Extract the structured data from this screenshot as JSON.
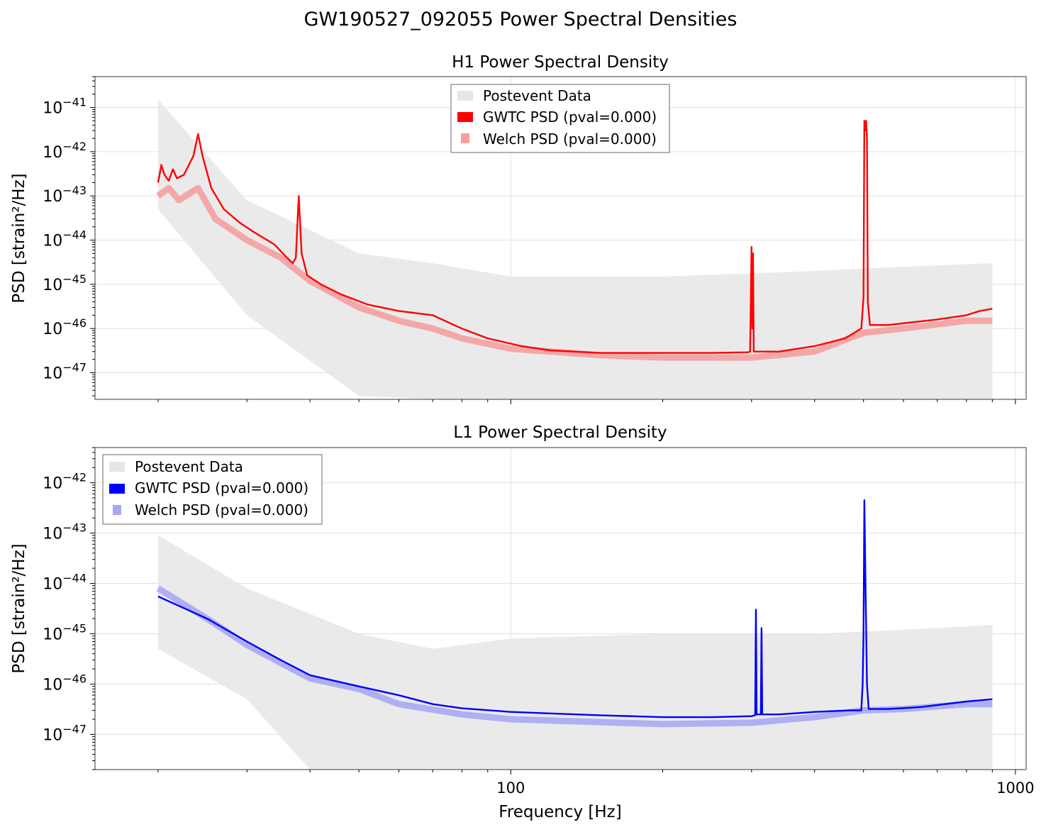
{
  "figure_title": "GW190527_092055 Power Spectral Densities",
  "x_axis_label": "Frequency [Hz]",
  "colors": {
    "postevent": "#e6e6e6",
    "h1_gwtc": "#ff0000",
    "h1_welch": "#f5a0a0",
    "l1_gwtc": "#0000ff",
    "l1_welch": "#a8a8f5",
    "grid": "#e0e0e0",
    "frame": "#808080"
  },
  "chart_data": [
    {
      "type": "line",
      "title": "H1 Power Spectral Density",
      "xlabel": "",
      "ylabel": "PSD [strain²/Hz]",
      "xscale": "log",
      "yscale": "log",
      "xlim": [
        15,
        1050
      ],
      "ylim": [
        2.5e-48,
        5e-41
      ],
      "x_ticks": [
        100,
        1000
      ],
      "x_tick_labels": [
        "",
        ""
      ],
      "y_ticks": [
        1e-47,
        1e-46,
        1e-45,
        1e-44,
        1e-43,
        1e-42,
        1e-41
      ],
      "y_tick_labels": [
        {
          "base": "10",
          "exp": "−47"
        },
        {
          "base": "10",
          "exp": "−46"
        },
        {
          "base": "10",
          "exp": "−45"
        },
        {
          "base": "10",
          "exp": "−44"
        },
        {
          "base": "10",
          "exp": "−43"
        },
        {
          "base": "10",
          "exp": "−42"
        },
        {
          "base": "10",
          "exp": "−41"
        }
      ],
      "grid": true,
      "legend_position": "top-center",
      "series": [
        {
          "name": "Postevent Data",
          "role": "postevent",
          "color": "#e6e6e6"
        },
        {
          "name": "GWTC PSD (pval=0.000)",
          "role": "gwtc",
          "color": "#ff0000"
        },
        {
          "name": "Welch PSD (pval=0.000)",
          "role": "welch",
          "color": "#f5a0a0"
        }
      ],
      "gwtc_curve": [
        [
          20,
          2e-43
        ],
        [
          20.3,
          5e-43
        ],
        [
          20.6,
          3e-43
        ],
        [
          21,
          2.2e-43
        ],
        [
          21.4,
          4e-43
        ],
        [
          21.8,
          2.5e-43
        ],
        [
          22.5,
          3e-43
        ],
        [
          23.5,
          8e-43
        ],
        [
          24,
          2.5e-42
        ],
        [
          24.5,
          8e-43
        ],
        [
          25.5,
          1.5e-43
        ],
        [
          27,
          5e-44
        ],
        [
          29,
          2.5e-44
        ],
        [
          31,
          1.5e-44
        ],
        [
          34,
          8e-45
        ],
        [
          36,
          4e-45
        ],
        [
          37,
          3e-45
        ],
        [
          37.5,
          4e-45
        ],
        [
          38,
          1e-43
        ],
        [
          38.5,
          5e-45
        ],
        [
          39.5,
          1.6e-45
        ],
        [
          42,
          1e-45
        ],
        [
          46,
          6e-46
        ],
        [
          52,
          3.5e-46
        ],
        [
          60,
          2.5e-46
        ],
        [
          70,
          2e-46
        ],
        [
          80,
          1e-46
        ],
        [
          90,
          6e-47
        ],
        [
          105,
          4e-47
        ],
        [
          120,
          3.2e-47
        ],
        [
          150,
          2.8e-47
        ],
        [
          200,
          2.8e-47
        ],
        [
          250,
          2.8e-47
        ],
        [
          295,
          2.9e-47
        ],
        [
          298,
          3e-47
        ],
        [
          300,
          7e-45
        ],
        [
          301,
          1e-46
        ],
        [
          302,
          5e-45
        ],
        [
          303,
          3e-47
        ],
        [
          340,
          3e-47
        ],
        [
          400,
          4e-47
        ],
        [
          460,
          6e-47
        ],
        [
          495,
          1e-46
        ],
        [
          500,
          5e-46
        ],
        [
          502,
          5e-42
        ],
        [
          504,
          3e-42
        ],
        [
          506,
          5e-42
        ],
        [
          508,
          2e-42
        ],
        [
          510,
          4e-46
        ],
        [
          515,
          1.2e-46
        ],
        [
          560,
          1.2e-46
        ],
        [
          700,
          1.6e-46
        ],
        [
          800,
          2e-46
        ],
        [
          850,
          2.5e-46
        ],
        [
          900,
          2.8e-46
        ]
      ],
      "welch_curve": [
        [
          20,
          1e-43
        ],
        [
          21,
          1.5e-43
        ],
        [
          22,
          8e-44
        ],
        [
          24,
          1.5e-43
        ],
        [
          26,
          3e-44
        ],
        [
          30,
          1e-44
        ],
        [
          35,
          4e-45
        ],
        [
          40,
          1.2e-45
        ],
        [
          50,
          3e-46
        ],
        [
          60,
          1.5e-46
        ],
        [
          70,
          1e-46
        ],
        [
          80,
          6e-47
        ],
        [
          100,
          3.5e-47
        ],
        [
          150,
          2.5e-47
        ],
        [
          200,
          2.2e-47
        ],
        [
          300,
          2.2e-47
        ],
        [
          400,
          3e-47
        ],
        [
          500,
          8e-47
        ],
        [
          600,
          1e-46
        ],
        [
          800,
          1.5e-46
        ],
        [
          900,
          1.5e-46
        ]
      ],
      "postevent_envelope": {
        "upper": [
          [
            20,
            1.5e-41
          ],
          [
            30,
            8e-44
          ],
          [
            50,
            5e-45
          ],
          [
            70,
            3e-45
          ],
          [
            100,
            1.5e-45
          ],
          [
            200,
            1.5e-45
          ],
          [
            400,
            2e-45
          ],
          [
            600,
            2.5e-45
          ],
          [
            900,
            3e-45
          ]
        ],
        "lower": [
          [
            20,
            5e-44
          ],
          [
            30,
            2e-46
          ],
          [
            50,
            3e-48
          ],
          [
            70,
            2.5e-48
          ],
          [
            100,
            2.5e-48
          ],
          [
            900,
            2.5e-48
          ]
        ]
      }
    },
    {
      "type": "line",
      "title": "L1 Power Spectral Density",
      "xlabel": "Frequency [Hz]",
      "ylabel": "PSD [strain²/Hz]",
      "xscale": "log",
      "yscale": "log",
      "xlim": [
        15,
        1050
      ],
      "ylim": [
        2e-48,
        5e-42
      ],
      "x_ticks": [
        100,
        1000
      ],
      "x_tick_labels": [
        "100",
        "1000"
      ],
      "y_ticks": [
        1e-47,
        1e-46,
        1e-45,
        1e-44,
        1e-43,
        1e-42
      ],
      "y_tick_labels": [
        {
          "base": "10",
          "exp": "−47"
        },
        {
          "base": "10",
          "exp": "−46"
        },
        {
          "base": "10",
          "exp": "−45"
        },
        {
          "base": "10",
          "exp": "−44"
        },
        {
          "base": "10",
          "exp": "−43"
        },
        {
          "base": "10",
          "exp": "−42"
        }
      ],
      "grid": true,
      "legend_position": "top-left",
      "series": [
        {
          "name": "Postevent Data",
          "role": "postevent",
          "color": "#e6e6e6"
        },
        {
          "name": "GWTC PSD (pval=0.000)",
          "role": "gwtc",
          "color": "#0000ff"
        },
        {
          "name": "Welch PSD (pval=0.000)",
          "role": "welch",
          "color": "#a8a8f5"
        }
      ],
      "gwtc_curve": [
        [
          20,
          5.5e-45
        ],
        [
          25,
          2e-45
        ],
        [
          30,
          7e-46
        ],
        [
          35,
          3e-46
        ],
        [
          40,
          1.5e-46
        ],
        [
          50,
          9e-47
        ],
        [
          60,
          6e-47
        ],
        [
          70,
          4e-47
        ],
        [
          80,
          3.3e-47
        ],
        [
          100,
          2.8e-47
        ],
        [
          150,
          2.4e-47
        ],
        [
          200,
          2.2e-47
        ],
        [
          250,
          2.2e-47
        ],
        [
          300,
          2.3e-47
        ],
        [
          305,
          2.4e-47
        ],
        [
          306,
          3e-45
        ],
        [
          307,
          2.5e-47
        ],
        [
          313,
          2.5e-47
        ],
        [
          314,
          1.3e-45
        ],
        [
          315,
          2.5e-47
        ],
        [
          340,
          2.5e-47
        ],
        [
          400,
          2.8e-47
        ],
        [
          470,
          3e-47
        ],
        [
          495,
          3e-47
        ],
        [
          498,
          1e-46
        ],
        [
          500,
          1e-45
        ],
        [
          502,
          4.5e-43
        ],
        [
          505,
          5e-45
        ],
        [
          508,
          1e-46
        ],
        [
          512,
          3.2e-47
        ],
        [
          560,
          3.2e-47
        ],
        [
          650,
          3.5e-47
        ],
        [
          800,
          4.5e-47
        ],
        [
          900,
          5e-47
        ]
      ],
      "welch_curve": [
        [
          20,
          8e-45
        ],
        [
          25,
          2e-45
        ],
        [
          30,
          6e-46
        ],
        [
          40,
          1.3e-46
        ],
        [
          50,
          8e-47
        ],
        [
          60,
          4e-47
        ],
        [
          80,
          2.5e-47
        ],
        [
          100,
          2e-47
        ],
        [
          200,
          1.6e-47
        ],
        [
          300,
          1.7e-47
        ],
        [
          400,
          2.2e-47
        ],
        [
          500,
          3e-47
        ],
        [
          600,
          3.2e-47
        ],
        [
          800,
          4e-47
        ],
        [
          900,
          4e-47
        ]
      ],
      "postevent_envelope": {
        "upper": [
          [
            20,
            9e-44
          ],
          [
            30,
            8e-45
          ],
          [
            50,
            1e-45
          ],
          [
            70,
            5e-46
          ],
          [
            100,
            8e-46
          ],
          [
            200,
            1e-45
          ],
          [
            400,
            1e-45
          ],
          [
            600,
            1.2e-45
          ],
          [
            900,
            1.5e-45
          ]
        ],
        "lower": [
          [
            20,
            5e-46
          ],
          [
            30,
            5e-47
          ],
          [
            40,
            2e-48
          ],
          [
            60,
            2e-48
          ],
          [
            900,
            2e-48
          ]
        ]
      }
    }
  ]
}
